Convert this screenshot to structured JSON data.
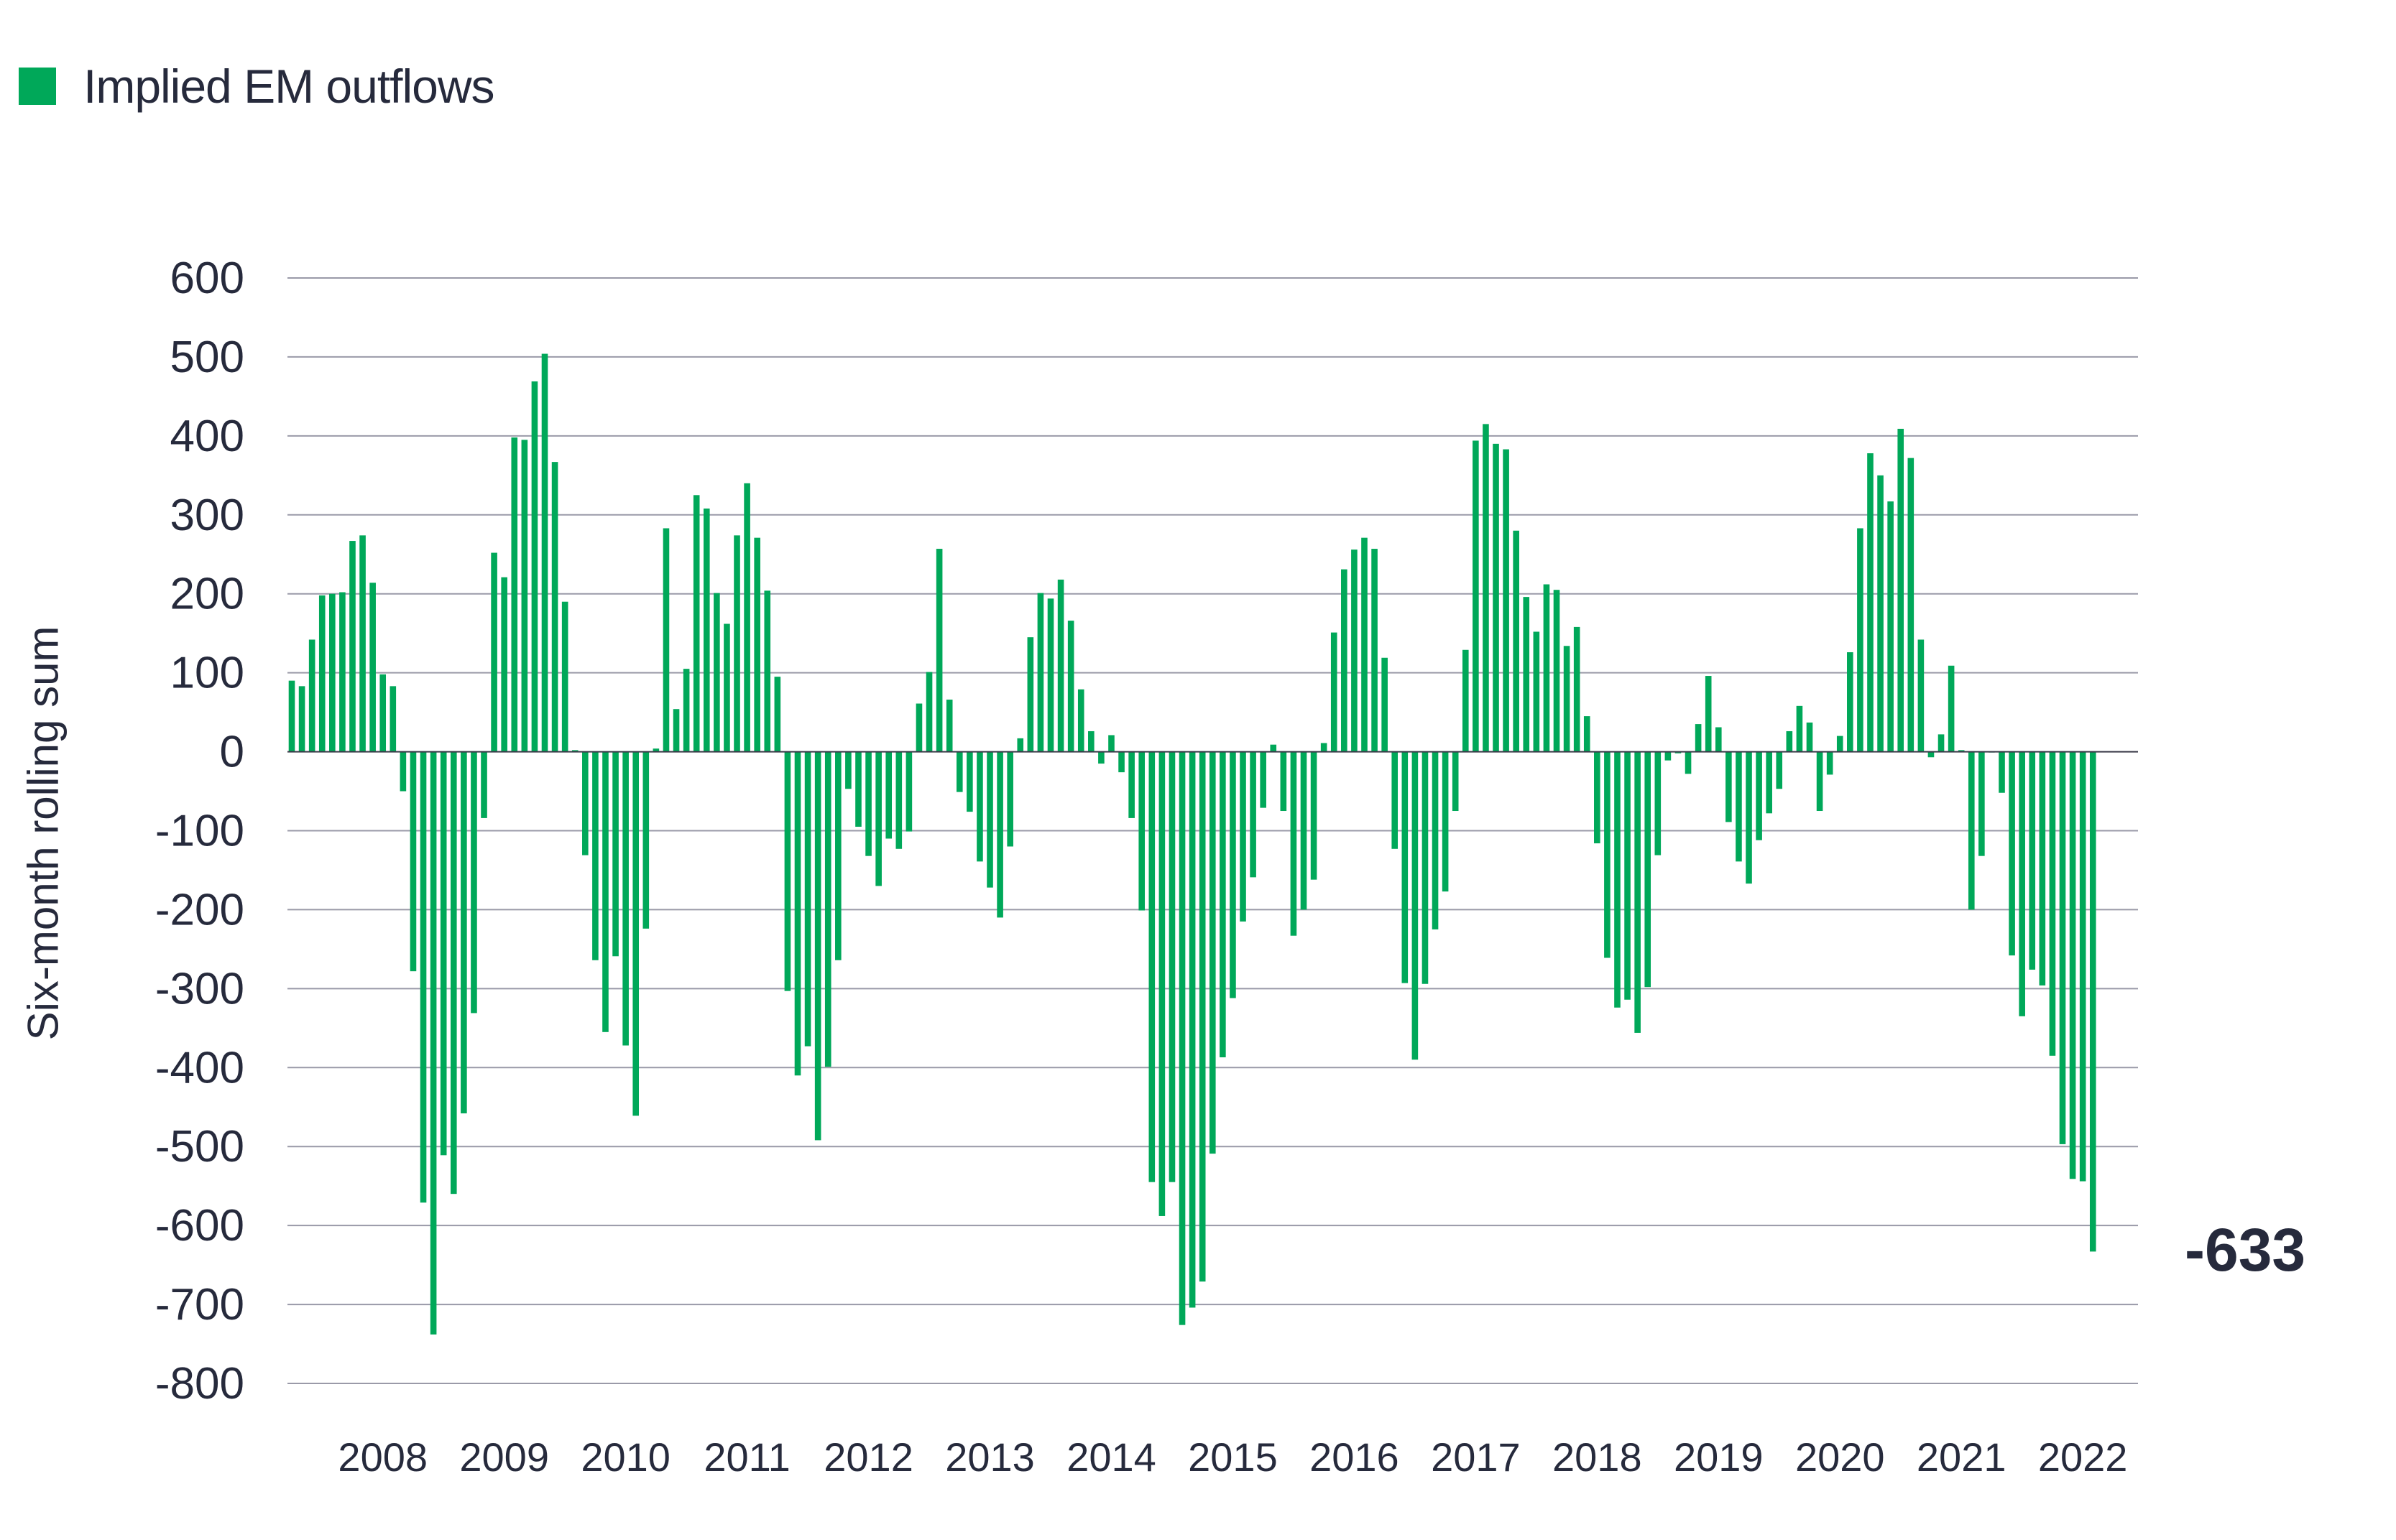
{
  "chart_data": {
    "type": "bar",
    "title": "",
    "legend": {
      "label": "Implied EM outflows",
      "placement": "top-left"
    },
    "ylabel": "Six-month rolling sum",
    "xlabel": "",
    "ylim": [
      -800,
      600
    ],
    "yticks": [
      600,
      500,
      400,
      300,
      200,
      100,
      0,
      -100,
      -200,
      -300,
      -400,
      -500,
      -600,
      -700,
      -800
    ],
    "grid": true,
    "x_tick_labels": [
      "2008",
      "2009",
      "2010",
      "2011",
      "2012",
      "2013",
      "2014",
      "2015",
      "2016",
      "2017",
      "2018",
      "2019",
      "2020",
      "2021",
      "2022"
    ],
    "values": [
      90,
      83,
      142,
      198,
      200,
      202,
      267,
      274,
      214,
      98,
      83,
      -50,
      -278,
      -571,
      -738,
      -511,
      -560,
      -458,
      -331,
      -84,
      252,
      221,
      398,
      395,
      469,
      504,
      367,
      190,
      2,
      -131,
      -264,
      -355,
      -259,
      -372,
      -461,
      -224,
      4,
      283,
      54,
      105,
      325,
      308,
      201,
      162,
      274,
      340,
      271,
      204,
      95,
      -303,
      -410,
      -373,
      -492,
      -399,
      -264,
      -47,
      -95,
      -132,
      -170,
      -110,
      -123,
      -101,
      61,
      101,
      257,
      66,
      -51,
      -76,
      -139,
      -172,
      -210,
      -120,
      17,
      145,
      201,
      194,
      218,
      166,
      79,
      26,
      -15,
      21,
      -26,
      -84,
      -201,
      -545,
      -588,
      -545,
      -726,
      -704,
      -671,
      -509,
      -387,
      -312,
      -215,
      -159,
      -71,
      9,
      -75,
      -233,
      -200,
      -162,
      11,
      151,
      231,
      256,
      271,
      257,
      119,
      -123,
      -293,
      -390,
      -294,
      -225,
      -177,
      -75,
      129,
      394,
      415,
      390,
      383,
      280,
      196,
      152,
      212,
      205,
      134,
      158,
      45,
      -116,
      -261,
      -324,
      -314,
      -356,
      -298,
      -131,
      -11,
      -2,
      -28,
      35,
      96,
      31,
      -89,
      -139,
      -167,
      -112,
      -78,
      -47,
      26,
      58,
      37,
      -75,
      -29,
      20,
      126,
      283,
      378,
      350,
      317,
      409,
      372,
      142,
      -7,
      22,
      109,
      2,
      -200,
      -132,
      -1,
      -52,
      -258,
      -335,
      -276,
      -296,
      -385,
      -497,
      -541,
      -544,
      -633
    ],
    "annotation": "-633"
  },
  "colors": {
    "bar": "#00a859",
    "grid": "#9a9aa8",
    "zero_line": "#3a3a48",
    "text": "#262a3c"
  }
}
